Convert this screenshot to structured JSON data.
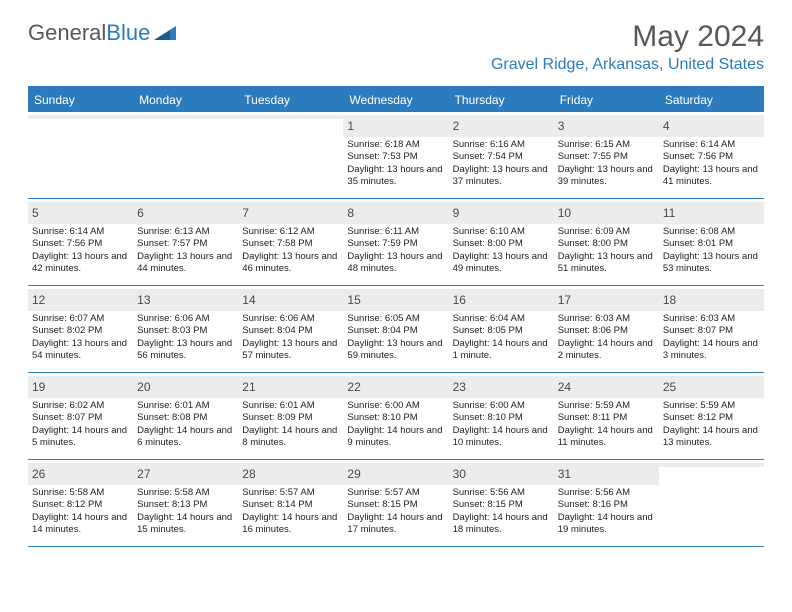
{
  "brand": {
    "part1": "General",
    "part2": "Blue"
  },
  "title": "May 2024",
  "location": "Gravel Ridge, Arkansas, United States",
  "headers": [
    "Sunday",
    "Monday",
    "Tuesday",
    "Wednesday",
    "Thursday",
    "Friday",
    "Saturday"
  ],
  "colors": {
    "accent": "#2b7bbd",
    "grey_text": "#57585a",
    "row_bg": "#ececec",
    "background": "#ffffff"
  },
  "typography": {
    "title_fontsize": 30,
    "location_fontsize": 16,
    "header_fontsize": 12,
    "daynum_fontsize": 12,
    "body_fontsize": 9.5
  },
  "weeks": [
    [
      {
        "n": "",
        "sr": "",
        "ss": "",
        "dl": ""
      },
      {
        "n": "",
        "sr": "",
        "ss": "",
        "dl": ""
      },
      {
        "n": "",
        "sr": "",
        "ss": "",
        "dl": ""
      },
      {
        "n": "1",
        "sr": "Sunrise: 6:18 AM",
        "ss": "Sunset: 7:53 PM",
        "dl": "Daylight: 13 hours and 35 minutes."
      },
      {
        "n": "2",
        "sr": "Sunrise: 6:16 AM",
        "ss": "Sunset: 7:54 PM",
        "dl": "Daylight: 13 hours and 37 minutes."
      },
      {
        "n": "3",
        "sr": "Sunrise: 6:15 AM",
        "ss": "Sunset: 7:55 PM",
        "dl": "Daylight: 13 hours and 39 minutes."
      },
      {
        "n": "4",
        "sr": "Sunrise: 6:14 AM",
        "ss": "Sunset: 7:56 PM",
        "dl": "Daylight: 13 hours and 41 minutes."
      }
    ],
    [
      {
        "n": "5",
        "sr": "Sunrise: 6:14 AM",
        "ss": "Sunset: 7:56 PM",
        "dl": "Daylight: 13 hours and 42 minutes."
      },
      {
        "n": "6",
        "sr": "Sunrise: 6:13 AM",
        "ss": "Sunset: 7:57 PM",
        "dl": "Daylight: 13 hours and 44 minutes."
      },
      {
        "n": "7",
        "sr": "Sunrise: 6:12 AM",
        "ss": "Sunset: 7:58 PM",
        "dl": "Daylight: 13 hours and 46 minutes."
      },
      {
        "n": "8",
        "sr": "Sunrise: 6:11 AM",
        "ss": "Sunset: 7:59 PM",
        "dl": "Daylight: 13 hours and 48 minutes."
      },
      {
        "n": "9",
        "sr": "Sunrise: 6:10 AM",
        "ss": "Sunset: 8:00 PM",
        "dl": "Daylight: 13 hours and 49 minutes."
      },
      {
        "n": "10",
        "sr": "Sunrise: 6:09 AM",
        "ss": "Sunset: 8:00 PM",
        "dl": "Daylight: 13 hours and 51 minutes."
      },
      {
        "n": "11",
        "sr": "Sunrise: 6:08 AM",
        "ss": "Sunset: 8:01 PM",
        "dl": "Daylight: 13 hours and 53 minutes."
      }
    ],
    [
      {
        "n": "12",
        "sr": "Sunrise: 6:07 AM",
        "ss": "Sunset: 8:02 PM",
        "dl": "Daylight: 13 hours and 54 minutes."
      },
      {
        "n": "13",
        "sr": "Sunrise: 6:06 AM",
        "ss": "Sunset: 8:03 PM",
        "dl": "Daylight: 13 hours and 56 minutes."
      },
      {
        "n": "14",
        "sr": "Sunrise: 6:06 AM",
        "ss": "Sunset: 8:04 PM",
        "dl": "Daylight: 13 hours and 57 minutes."
      },
      {
        "n": "15",
        "sr": "Sunrise: 6:05 AM",
        "ss": "Sunset: 8:04 PM",
        "dl": "Daylight: 13 hours and 59 minutes."
      },
      {
        "n": "16",
        "sr": "Sunrise: 6:04 AM",
        "ss": "Sunset: 8:05 PM",
        "dl": "Daylight: 14 hours and 1 minute."
      },
      {
        "n": "17",
        "sr": "Sunrise: 6:03 AM",
        "ss": "Sunset: 8:06 PM",
        "dl": "Daylight: 14 hours and 2 minutes."
      },
      {
        "n": "18",
        "sr": "Sunrise: 6:03 AM",
        "ss": "Sunset: 8:07 PM",
        "dl": "Daylight: 14 hours and 3 minutes."
      }
    ],
    [
      {
        "n": "19",
        "sr": "Sunrise: 6:02 AM",
        "ss": "Sunset: 8:07 PM",
        "dl": "Daylight: 14 hours and 5 minutes."
      },
      {
        "n": "20",
        "sr": "Sunrise: 6:01 AM",
        "ss": "Sunset: 8:08 PM",
        "dl": "Daylight: 14 hours and 6 minutes."
      },
      {
        "n": "21",
        "sr": "Sunrise: 6:01 AM",
        "ss": "Sunset: 8:09 PM",
        "dl": "Daylight: 14 hours and 8 minutes."
      },
      {
        "n": "22",
        "sr": "Sunrise: 6:00 AM",
        "ss": "Sunset: 8:10 PM",
        "dl": "Daylight: 14 hours and 9 minutes."
      },
      {
        "n": "23",
        "sr": "Sunrise: 6:00 AM",
        "ss": "Sunset: 8:10 PM",
        "dl": "Daylight: 14 hours and 10 minutes."
      },
      {
        "n": "24",
        "sr": "Sunrise: 5:59 AM",
        "ss": "Sunset: 8:11 PM",
        "dl": "Daylight: 14 hours and 11 minutes."
      },
      {
        "n": "25",
        "sr": "Sunrise: 5:59 AM",
        "ss": "Sunset: 8:12 PM",
        "dl": "Daylight: 14 hours and 13 minutes."
      }
    ],
    [
      {
        "n": "26",
        "sr": "Sunrise: 5:58 AM",
        "ss": "Sunset: 8:12 PM",
        "dl": "Daylight: 14 hours and 14 minutes."
      },
      {
        "n": "27",
        "sr": "Sunrise: 5:58 AM",
        "ss": "Sunset: 8:13 PM",
        "dl": "Daylight: 14 hours and 15 minutes."
      },
      {
        "n": "28",
        "sr": "Sunrise: 5:57 AM",
        "ss": "Sunset: 8:14 PM",
        "dl": "Daylight: 14 hours and 16 minutes."
      },
      {
        "n": "29",
        "sr": "Sunrise: 5:57 AM",
        "ss": "Sunset: 8:15 PM",
        "dl": "Daylight: 14 hours and 17 minutes."
      },
      {
        "n": "30",
        "sr": "Sunrise: 5:56 AM",
        "ss": "Sunset: 8:15 PM",
        "dl": "Daylight: 14 hours and 18 minutes."
      },
      {
        "n": "31",
        "sr": "Sunrise: 5:56 AM",
        "ss": "Sunset: 8:16 PM",
        "dl": "Daylight: 14 hours and 19 minutes."
      },
      {
        "n": "",
        "sr": "",
        "ss": "",
        "dl": ""
      }
    ]
  ]
}
